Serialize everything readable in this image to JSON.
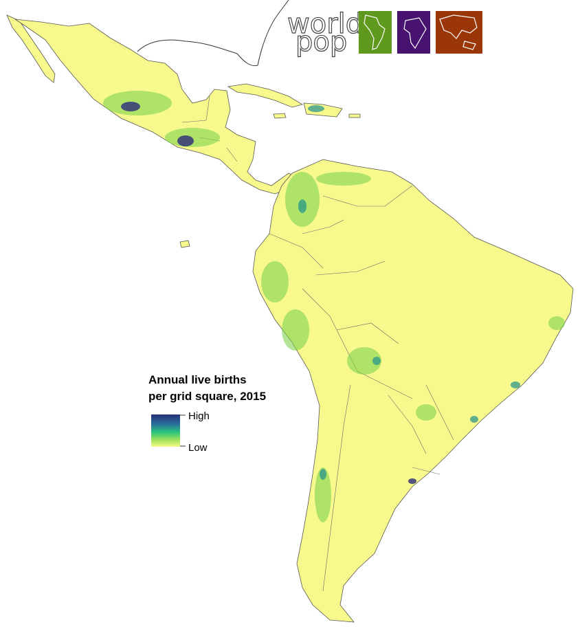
{
  "logo": {
    "line1": "world",
    "line2": "pop"
  },
  "legend": {
    "title_lines": [
      "Annual live births",
      "per grid square, 2015"
    ],
    "high": "High",
    "low": "Low"
  }
}
